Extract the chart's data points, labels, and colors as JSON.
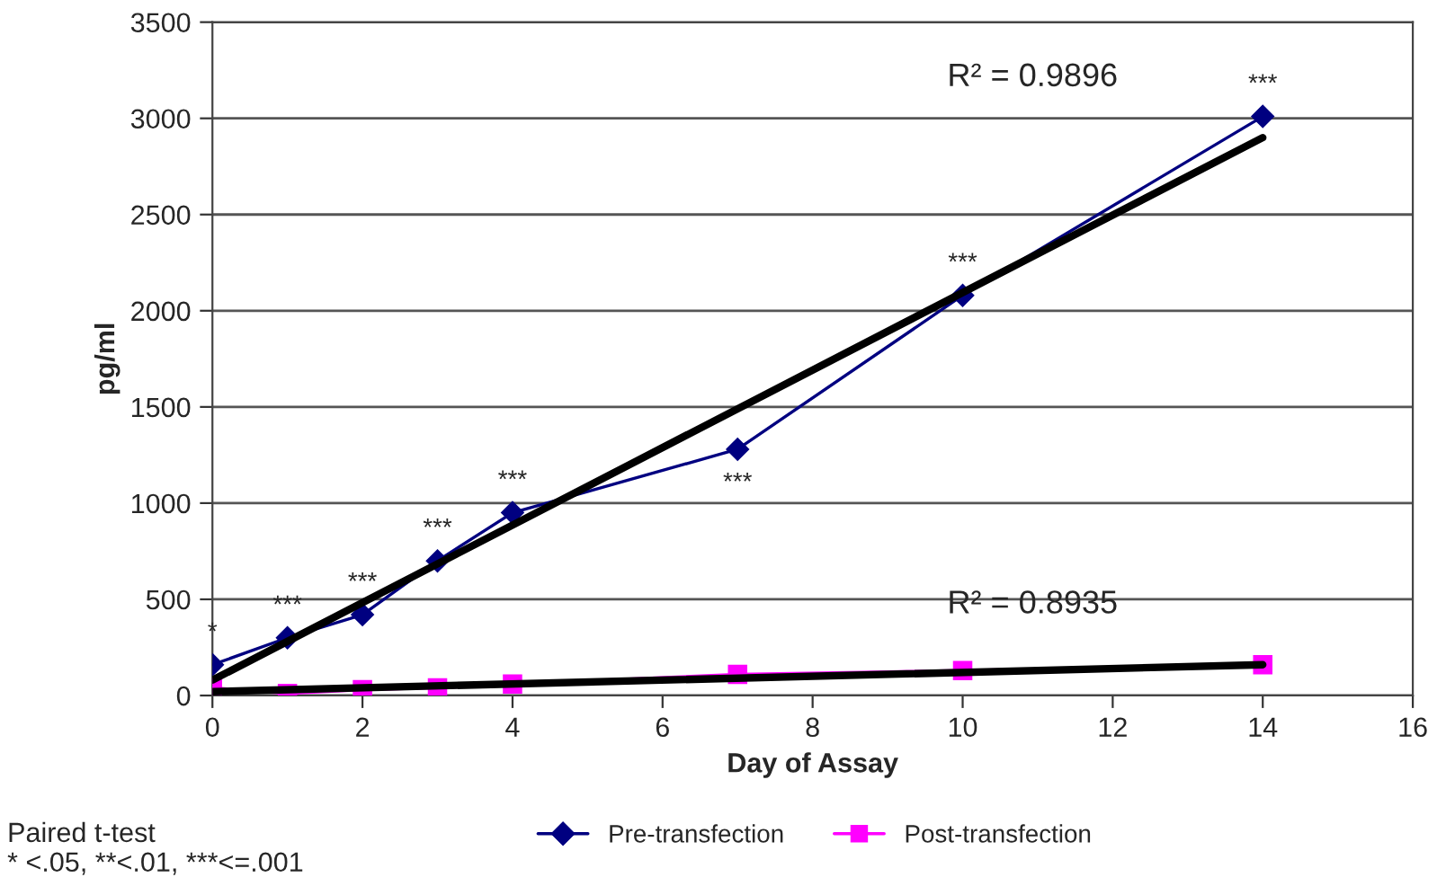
{
  "chart_data": {
    "type": "line",
    "xlabel": "Day of Assay",
    "ylabel": "pg/ml",
    "xlim": [
      0,
      16
    ],
    "xticks": [
      0,
      2,
      4,
      6,
      8,
      10,
      12,
      14,
      16
    ],
    "ylim": [
      0,
      3500
    ],
    "yticks": [
      0,
      500,
      1000,
      1500,
      2000,
      2500,
      3000,
      3500
    ],
    "grid": "y",
    "legend": "bottom",
    "series": [
      {
        "name": "Pre-transfection",
        "color": "#000080",
        "marker": "diamond",
        "x": [
          0,
          1,
          2,
          3,
          4,
          7,
          10,
          14
        ],
        "values": [
          160,
          300,
          420,
          700,
          950,
          1280,
          2080,
          3010
        ]
      },
      {
        "name": "Post-transfection",
        "color": "#ff00ff",
        "marker": "square",
        "x": [
          0,
          1,
          2,
          3,
          4,
          7,
          10,
          14
        ],
        "values": [
          40,
          10,
          30,
          40,
          60,
          110,
          130,
          160
        ]
      },
      {
        "color": "#000000",
        "marker": "none",
        "x": [
          0,
          14
        ],
        "values": [
          80,
          2900
        ]
      },
      {
        "color": "#000000",
        "marker": "none",
        "x": [
          0,
          14
        ],
        "values": [
          20,
          160
        ]
      }
    ],
    "annotations": [
      {
        "text": "*",
        "x": 0,
        "y": 160
      },
      {
        "text": "***",
        "x": 1,
        "y": 300
      },
      {
        "text": "***",
        "x": 2,
        "y": 420
      },
      {
        "text": "***",
        "x": 3,
        "y": 700
      },
      {
        "text": "***",
        "x": 4,
        "y": 950
      },
      {
        "text": "***",
        "x": 7,
        "y": 1280
      },
      {
        "text": "***",
        "x": 10,
        "y": 2080
      },
      {
        "text": "***",
        "x": 14,
        "y": 3010
      },
      "R² = 0.9896",
      "R² = 0.8935",
      "Paired t-test\n* <.05, **<.01, ***<=.001"
    ]
  }
}
